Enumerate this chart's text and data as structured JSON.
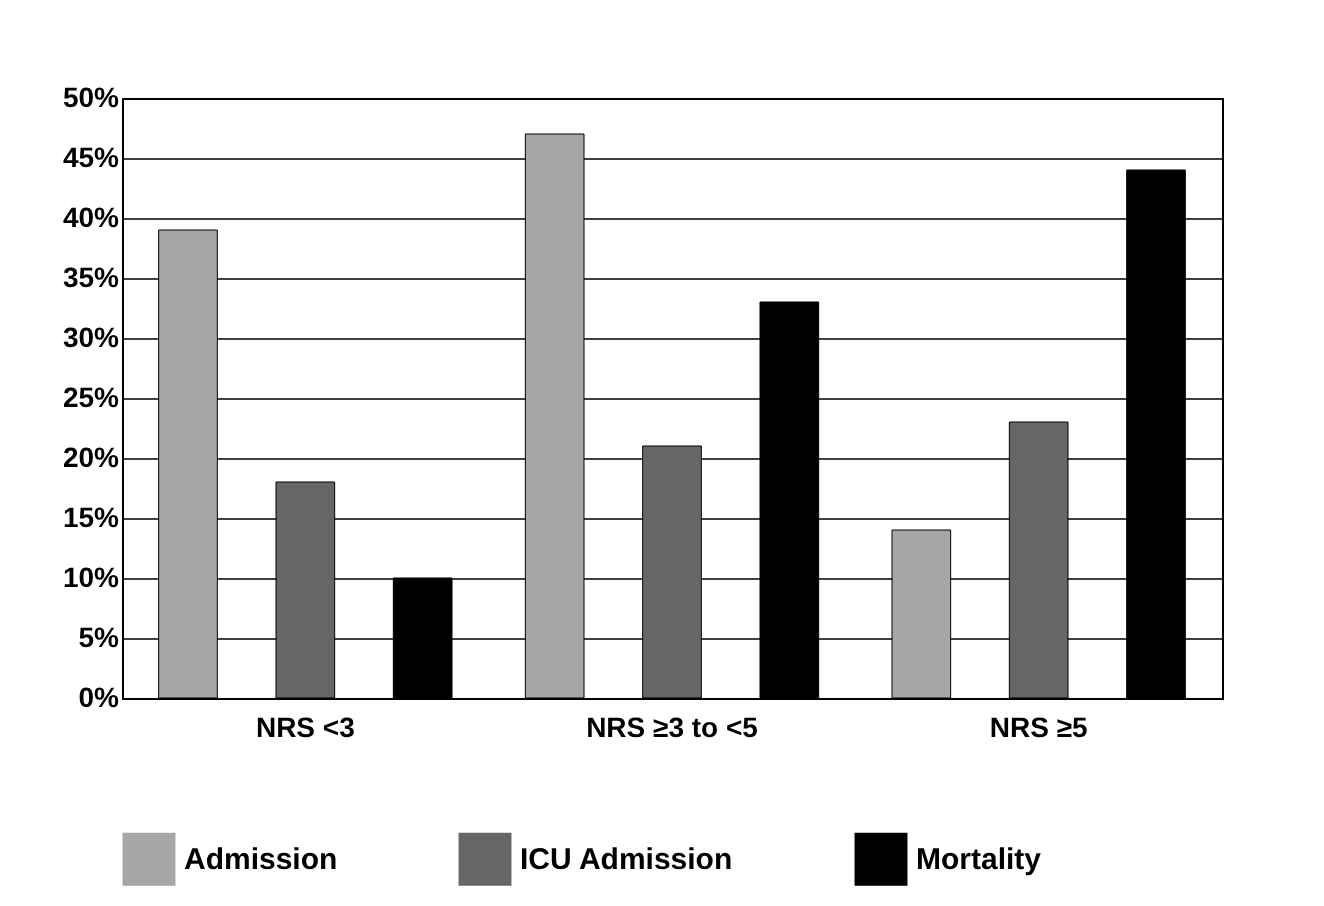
{
  "chart_data": {
    "type": "bar",
    "categories": [
      "NRS <3",
      "NRS ≥3 to <5",
      "NRS ≥5"
    ],
    "series": [
      {
        "name": "Admission",
        "color": "#a6a6a6",
        "values": [
          39,
          47,
          14
        ]
      },
      {
        "name": "ICU Admission",
        "color": "#666666",
        "values": [
          18,
          21,
          23
        ]
      },
      {
        "name": "Mortality",
        "color": "#000000",
        "values": [
          10,
          33,
          44
        ]
      }
    ],
    "ylim": [
      0,
      50
    ],
    "yticks": [
      {
        "value": 0,
        "label": "0%"
      },
      {
        "value": 5,
        "label": "5%"
      },
      {
        "value": 10,
        "label": "10%"
      },
      {
        "value": 15,
        "label": "15%"
      },
      {
        "value": 20,
        "label": "20%"
      },
      {
        "value": 25,
        "label": "25%"
      },
      {
        "value": 30,
        "label": "30%"
      },
      {
        "value": 35,
        "label": "35%"
      },
      {
        "value": 40,
        "label": "40%"
      },
      {
        "value": 45,
        "label": "45%"
      },
      {
        "value": 50,
        "label": "50%"
      }
    ],
    "grid": "y",
    "legend": "bottom"
  }
}
